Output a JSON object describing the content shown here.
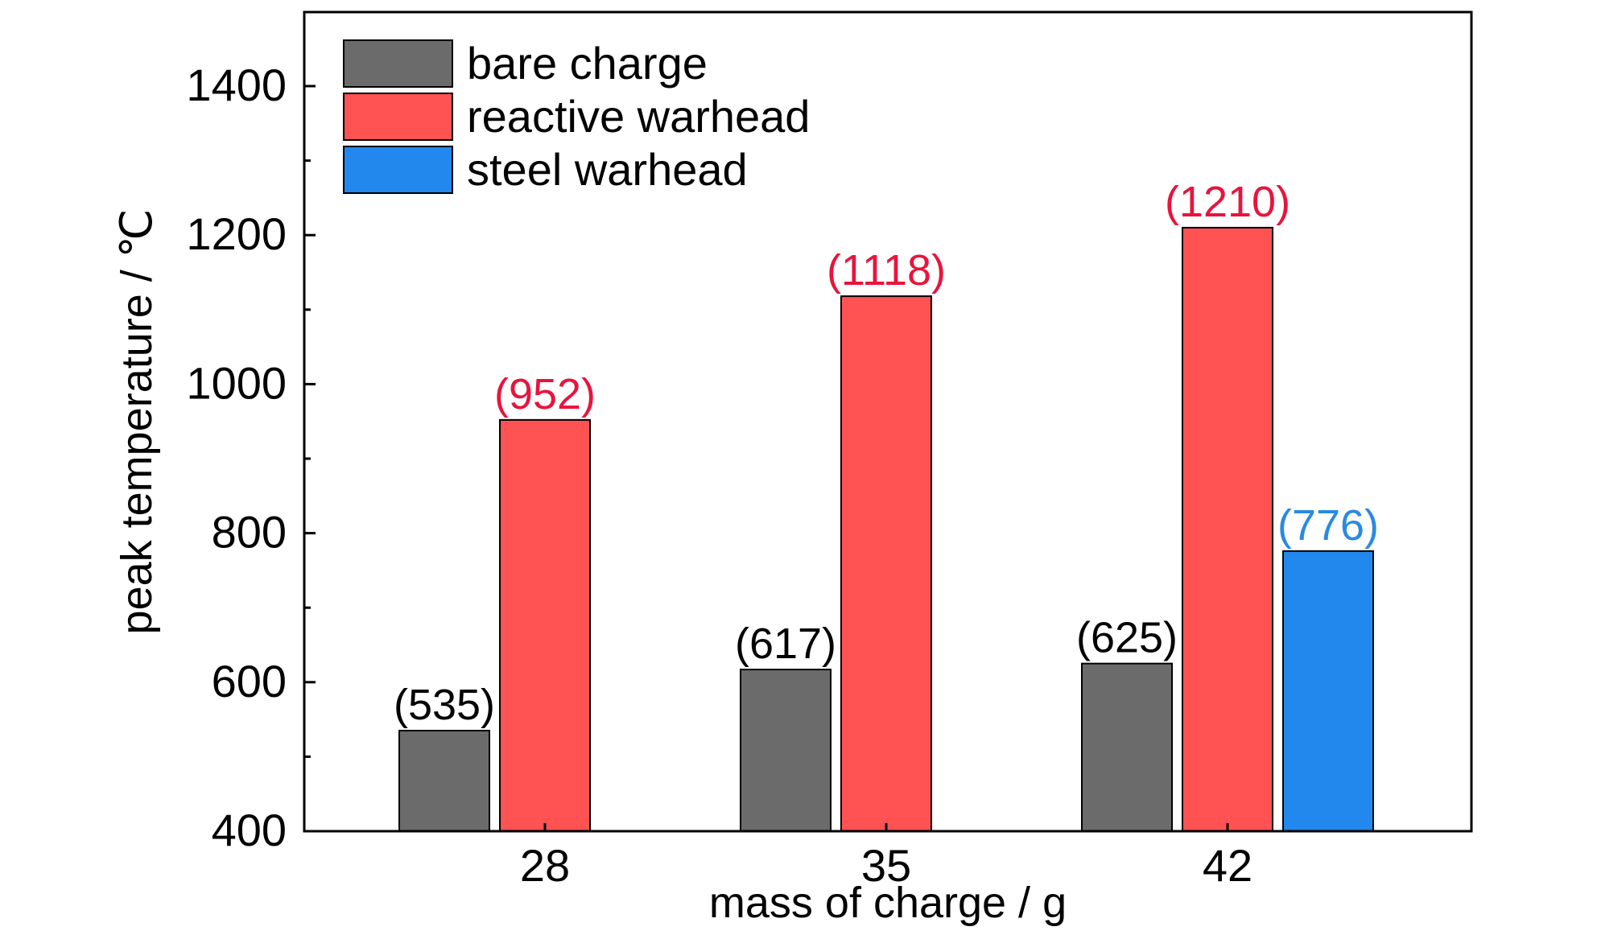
{
  "chart_data": {
    "type": "bar",
    "title": "",
    "xlabel": "mass of charge / g",
    "ylabel": "peak temperature / ℃",
    "categories": [
      "28",
      "35",
      "42"
    ],
    "ylim": [
      400,
      1500
    ],
    "yticks": [
      400,
      600,
      800,
      1000,
      1200,
      1400
    ],
    "grid": false,
    "legend_position": "top-left",
    "series": [
      {
        "name": "bare charge",
        "color": "#6b6b6b",
        "label_color": "#000000",
        "values": [
          535,
          617,
          625
        ],
        "labels": [
          "(535)",
          "(617)",
          "(625)"
        ]
      },
      {
        "name": "reactive warhead",
        "color": "#ff5252",
        "label_color": "#e8143c",
        "values": [
          952,
          1118,
          1210
        ],
        "labels": [
          "(952)",
          "(1118)",
          "(1210)"
        ]
      },
      {
        "name": "steel warhead",
        "color": "#2288ee",
        "label_color": "#2a8ae0",
        "values": [
          null,
          null,
          776
        ],
        "labels": [
          null,
          null,
          "(776)"
        ]
      }
    ]
  }
}
